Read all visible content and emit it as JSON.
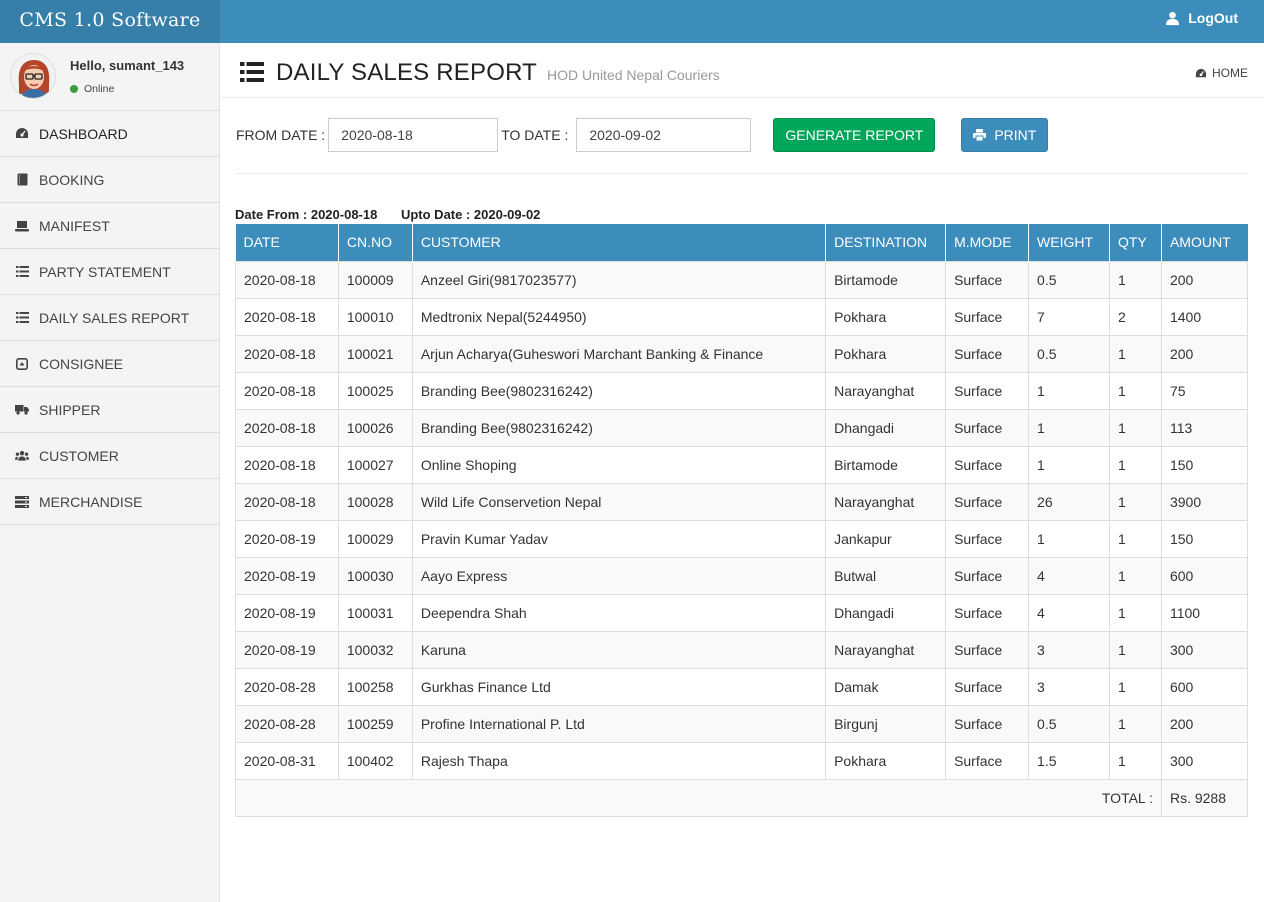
{
  "app": {
    "brand": "CMS 1.0 Software",
    "logout_label": "LogOut"
  },
  "user": {
    "greeting": "Hello, sumant_143",
    "status": "Online"
  },
  "sidebar": {
    "items": [
      {
        "label": "DASHBOARD",
        "icon": "dashboard-icon"
      },
      {
        "label": "BOOKING",
        "icon": "book-icon"
      },
      {
        "label": "MANIFEST",
        "icon": "laptop-icon"
      },
      {
        "label": "PARTY STATEMENT",
        "icon": "list-icon"
      },
      {
        "label": "DAILY SALES REPORT",
        "icon": "list-icon"
      },
      {
        "label": "CONSIGNEE",
        "icon": "caret-square-icon"
      },
      {
        "label": "SHIPPER",
        "icon": "truck-icon"
      },
      {
        "label": "CUSTOMER",
        "icon": "users-icon"
      },
      {
        "label": "MERCHANDISE",
        "icon": "server-icon"
      }
    ]
  },
  "header": {
    "title": "DAILY SALES REPORT",
    "subtitle": "HOD United Nepal Couriers",
    "home_label": "HOME"
  },
  "filters": {
    "from_label": "FROM DATE :",
    "from_value": "2020-08-18",
    "to_label": "TO DATE :",
    "to_value": "2020-09-02",
    "generate_label": "GENERATE REPORT",
    "print_label": "PRINT"
  },
  "range": {
    "from_text": "Date From : 2020-08-18",
    "upto_text": "Upto Date : 2020-09-02"
  },
  "table": {
    "columns": [
      "DATE",
      "CN.NO",
      "CUSTOMER",
      "DESTINATION",
      "M.MODE",
      "WEIGHT",
      "QTY",
      "AMOUNT"
    ],
    "rows": [
      [
        "2020-08-18",
        "100009",
        "Anzeel Giri(9817023577)",
        "Birtamode",
        "Surface",
        "0.5",
        "1",
        "200"
      ],
      [
        "2020-08-18",
        "100010",
        "Medtronix Nepal(5244950)",
        "Pokhara",
        "Surface",
        "7",
        "2",
        "1400"
      ],
      [
        "2020-08-18",
        "100021",
        "Arjun Acharya(Guheswori Marchant Banking & Finance",
        "Pokhara",
        "Surface",
        "0.5",
        "1",
        "200"
      ],
      [
        "2020-08-18",
        "100025",
        "Branding Bee(9802316242)",
        "Narayanghat",
        "Surface",
        "1",
        "1",
        "75"
      ],
      [
        "2020-08-18",
        "100026",
        "Branding Bee(9802316242)",
        "Dhangadi",
        "Surface",
        "1",
        "1",
        "113"
      ],
      [
        "2020-08-18",
        "100027",
        "Online Shoping",
        "Birtamode",
        "Surface",
        "1",
        "1",
        "150"
      ],
      [
        "2020-08-18",
        "100028",
        "Wild Life Conservetion Nepal",
        "Narayanghat",
        "Surface",
        "26",
        "1",
        "3900"
      ],
      [
        "2020-08-19",
        "100029",
        "Pravin Kumar Yadav",
        "Jankapur",
        "Surface",
        "1",
        "1",
        "150"
      ],
      [
        "2020-08-19",
        "100030",
        "Aayo Express",
        "Butwal",
        "Surface",
        "4",
        "1",
        "600"
      ],
      [
        "2020-08-19",
        "100031",
        "Deependra Shah",
        "Dhangadi",
        "Surface",
        "4",
        "1",
        "1100"
      ],
      [
        "2020-08-19",
        "100032",
        "Karuna",
        "Narayanghat",
        "Surface",
        "3",
        "1",
        "300"
      ],
      [
        "2020-08-28",
        "100258",
        "Gurkhas Finance Ltd",
        "Damak",
        "Surface",
        "3",
        "1",
        "600"
      ],
      [
        "2020-08-28",
        "100259",
        "Profine International P. Ltd",
        "Birgunj",
        "Surface",
        "0.5",
        "1",
        "200"
      ],
      [
        "2020-08-31",
        "100402",
        "Rajesh Thapa",
        "Pokhara",
        "Surface",
        "1.5",
        "1",
        "300"
      ]
    ],
    "total_label": "TOTAL :",
    "total_value": "Rs. 9288"
  }
}
